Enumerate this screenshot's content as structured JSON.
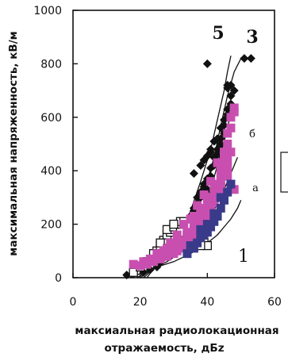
{
  "chart_data": {
    "type": "scatter",
    "ylabel": "максимальная напряженность, кВ/м",
    "xlabel_lines": [
      "максиальная радиолокационная",
      "отражаемость, дБz"
    ],
    "xlim": [
      0,
      60
    ],
    "ylim": [
      0,
      1000
    ],
    "x_ticks": [
      "0",
      "20",
      "40",
      "60"
    ],
    "y_ticks": [
      "0",
      "200",
      "400",
      "600",
      "800",
      "1000"
    ],
    "grid": false,
    "legend": "none",
    "curve_labels": [
      "5",
      "3",
      "б",
      "а",
      "1"
    ],
    "colors": {
      "magenta": "#c84fb0",
      "blue": "#3a3a8a",
      "black": "#111111"
    },
    "series": [
      {
        "marker": "diamond-filled",
        "color": "#111111",
        "points": [
          [
            16,
            10
          ],
          [
            18,
            15
          ],
          [
            26,
            60
          ],
          [
            28,
            90
          ],
          [
            30,
            120
          ],
          [
            32,
            190
          ],
          [
            33,
            180
          ],
          [
            34,
            210
          ],
          [
            35,
            230
          ],
          [
            36,
            260
          ],
          [
            37,
            300
          ],
          [
            38,
            320
          ],
          [
            39,
            350
          ],
          [
            40,
            370
          ],
          [
            41,
            410
          ],
          [
            42,
            450
          ],
          [
            43,
            480
          ],
          [
            44,
            520
          ],
          [
            45,
            570
          ],
          [
            46,
            630
          ],
          [
            47,
            650
          ],
          [
            44,
            500
          ],
          [
            43,
            460
          ],
          [
            41,
            380
          ],
          [
            39,
            340
          ],
          [
            38,
            300
          ],
          [
            36,
            250
          ],
          [
            35,
            220
          ],
          [
            34,
            200
          ],
          [
            33,
            170
          ],
          [
            46,
            710
          ],
          [
            48,
            700
          ],
          [
            41,
            470
          ],
          [
            37,
            280
          ],
          [
            40,
            330
          ],
          [
            42,
            420
          ],
          [
            44,
            480
          ],
          [
            45,
            540
          ],
          [
            47,
            600
          ],
          [
            31,
            130
          ],
          [
            29,
            100
          ],
          [
            27,
            80
          ],
          [
            25,
            40
          ],
          [
            23,
            30
          ],
          [
            21,
            20
          ]
        ]
      },
      {
        "marker": "diamond-filled",
        "color": "#111111",
        "points": [
          [
            41,
            480
          ],
          [
            42,
            510
          ],
          [
            43,
            520
          ],
          [
            44,
            560
          ],
          [
            45,
            590
          ],
          [
            46,
            610
          ],
          [
            39,
            440
          ],
          [
            36,
            390
          ],
          [
            38,
            420
          ],
          [
            47,
            680
          ],
          [
            40,
            455
          ]
        ]
      },
      {
        "marker": "diamond-filled",
        "color": "#111111",
        "points": [
          [
            40,
            800
          ],
          [
            51,
            820
          ],
          [
            53,
            820
          ],
          [
            46,
            720
          ],
          [
            47,
            720
          ]
        ]
      },
      {
        "marker": "square-open",
        "color": "#111111",
        "points": [
          [
            18,
            20
          ],
          [
            20,
            40
          ],
          [
            22,
            60
          ],
          [
            24,
            80
          ],
          [
            25,
            100
          ],
          [
            26,
            120
          ],
          [
            27,
            140
          ],
          [
            28,
            160
          ],
          [
            29,
            170
          ],
          [
            30,
            180
          ],
          [
            31,
            200
          ],
          [
            32,
            210
          ],
          [
            33,
            190
          ],
          [
            34,
            180
          ],
          [
            35,
            170
          ],
          [
            36,
            160
          ],
          [
            37,
            150
          ],
          [
            38,
            140
          ],
          [
            39,
            130
          ],
          [
            40,
            120
          ],
          [
            28,
            180
          ],
          [
            30,
            190
          ],
          [
            32,
            170
          ],
          [
            34,
            160
          ],
          [
            36,
            140
          ],
          [
            38,
            120
          ],
          [
            26,
            130
          ],
          [
            24,
            90
          ],
          [
            30,
            200
          ],
          [
            33,
            210
          ],
          [
            35,
            190
          ],
          [
            37,
            170
          ]
        ]
      },
      {
        "marker": "square-filled",
        "color": "#c84fb0",
        "points": [
          [
            18,
            50
          ],
          [
            20,
            45
          ],
          [
            22,
            55
          ],
          [
            24,
            60
          ],
          [
            26,
            70
          ],
          [
            28,
            80
          ],
          [
            30,
            90
          ],
          [
            31,
            100
          ],
          [
            32,
            110
          ],
          [
            33,
            120
          ],
          [
            34,
            130
          ],
          [
            35,
            150
          ],
          [
            36,
            170
          ],
          [
            37,
            190
          ],
          [
            38,
            220
          ],
          [
            39,
            240
          ],
          [
            40,
            260
          ],
          [
            41,
            290
          ],
          [
            42,
            320
          ],
          [
            43,
            350
          ],
          [
            44,
            390
          ],
          [
            45,
            450
          ],
          [
            46,
            500
          ],
          [
            47,
            560
          ],
          [
            48,
            620
          ],
          [
            26,
            80
          ],
          [
            28,
            90
          ],
          [
            30,
            100
          ],
          [
            32,
            120
          ],
          [
            34,
            140
          ],
          [
            36,
            160
          ],
          [
            38,
            200
          ],
          [
            40,
            230
          ],
          [
            42,
            280
          ],
          [
            44,
            330
          ],
          [
            46,
            410
          ],
          [
            48,
            330
          ],
          [
            24,
            70
          ],
          [
            22,
            50
          ],
          [
            29,
            95
          ],
          [
            31,
            110
          ],
          [
            33,
            130
          ],
          [
            35,
            160
          ],
          [
            37,
            180
          ],
          [
            39,
            210
          ],
          [
            41,
            250
          ],
          [
            43,
            300
          ],
          [
            45,
            380
          ],
          [
            47,
            470
          ],
          [
            36,
            230
          ],
          [
            38,
            240
          ],
          [
            40,
            270
          ],
          [
            42,
            300
          ],
          [
            44,
            350
          ],
          [
            46,
            380
          ],
          [
            30,
            120
          ],
          [
            32,
            140
          ],
          [
            34,
            170
          ],
          [
            36,
            200
          ],
          [
            38,
            260
          ],
          [
            40,
            300
          ],
          [
            42,
            340
          ],
          [
            44,
            420
          ],
          [
            46,
            540
          ],
          [
            47,
            600
          ],
          [
            48,
            635
          ],
          [
            45,
            470
          ],
          [
            43,
            430
          ],
          [
            41,
            360
          ],
          [
            39,
            310
          ],
          [
            37,
            270
          ],
          [
            35,
            220
          ],
          [
            33,
            200
          ],
          [
            31,
            160
          ],
          [
            29,
            130
          ],
          [
            27,
            100
          ],
          [
            25,
            90
          ],
          [
            23,
            70
          ],
          [
            21,
            60
          ],
          [
            34,
            150
          ],
          [
            36,
            180
          ],
          [
            38,
            210
          ],
          [
            40,
            250
          ],
          [
            42,
            290
          ],
          [
            44,
            360
          ],
          [
            46,
            440
          ],
          [
            28,
            110
          ],
          [
            30,
            130
          ],
          [
            26,
            90
          ]
        ]
      },
      {
        "marker": "square-filled",
        "color": "#3a3a8a",
        "points": [
          [
            34,
            90
          ],
          [
            36,
            110
          ],
          [
            37,
            130
          ],
          [
            38,
            150
          ],
          [
            39,
            160
          ],
          [
            40,
            170
          ],
          [
            41,
            190
          ],
          [
            42,
            210
          ],
          [
            43,
            230
          ],
          [
            44,
            260
          ],
          [
            45,
            290
          ],
          [
            46,
            320
          ],
          [
            47,
            350
          ],
          [
            35,
            120
          ],
          [
            38,
            180
          ],
          [
            40,
            200
          ],
          [
            42,
            240
          ],
          [
            44,
            300
          ]
        ]
      }
    ],
    "curves": [
      {
        "label": "1",
        "points": [
          [
            17,
            0
          ],
          [
            25,
            40
          ],
          [
            30,
            60
          ],
          [
            35,
            90
          ],
          [
            40,
            130
          ],
          [
            43,
            160
          ],
          [
            45,
            190
          ],
          [
            47,
            220
          ],
          [
            48,
            240
          ],
          [
            49,
            260
          ],
          [
            50,
            290
          ]
        ]
      },
      {
        "label": "а",
        "points": [
          [
            19,
            0
          ],
          [
            28,
            60
          ],
          [
            34,
            110
          ],
          [
            38,
            170
          ],
          [
            41,
            230
          ],
          [
            44,
            300
          ],
          [
            46,
            360
          ],
          [
            48,
            420
          ],
          [
            49,
            450
          ]
        ]
      },
      {
        "label": "б",
        "points": [
          [
            20,
            0
          ],
          [
            28,
            70
          ],
          [
            34,
            150
          ],
          [
            38,
            240
          ],
          [
            41,
            330
          ],
          [
            43,
            420
          ],
          [
            45,
            510
          ],
          [
            46,
            560
          ],
          [
            47,
            620
          ]
        ]
      },
      {
        "label": "3",
        "points": [
          [
            21,
            0
          ],
          [
            30,
            100
          ],
          [
            35,
            200
          ],
          [
            39,
            320
          ],
          [
            42,
            450
          ],
          [
            44,
            570
          ],
          [
            46,
            680
          ],
          [
            48,
            770
          ],
          [
            50,
            820
          ]
        ]
      },
      {
        "label": "5",
        "points": [
          [
            22,
            0
          ],
          [
            30,
            130
          ],
          [
            35,
            250
          ],
          [
            38,
            360
          ],
          [
            41,
            480
          ],
          [
            43,
            590
          ],
          [
            45,
            700
          ],
          [
            46,
            770
          ],
          [
            47,
            830
          ]
        ]
      }
    ]
  }
}
